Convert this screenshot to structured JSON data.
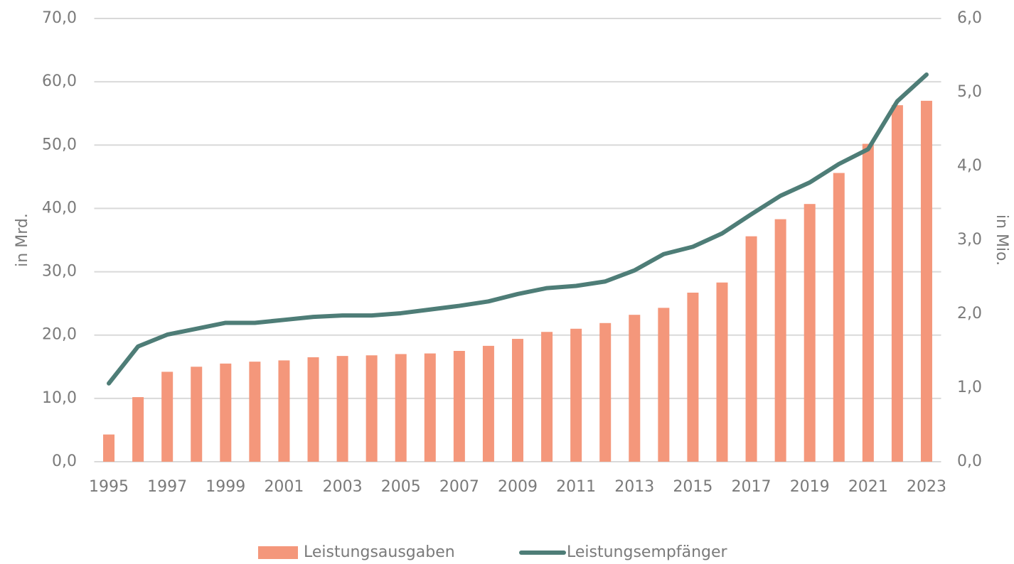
{
  "chart_data": {
    "type": "bar",
    "y_label": "in Mrd.",
    "y2_label": "in Mio.",
    "categories": [
      "1995",
      null,
      "1997",
      null,
      "1999",
      null,
      "2001",
      null,
      "2003",
      null,
      "2005",
      null,
      "2007",
      null,
      "2009",
      null,
      "2011",
      null,
      "2013",
      null,
      "2015",
      null,
      "2017",
      null,
      "2019",
      null,
      "2021",
      null,
      "2023"
    ],
    "series": [
      {
        "name": "Leistungsausgaben",
        "type": "bar",
        "color": "#f4977b",
        "values": [
          4.3,
          10.2,
          14.2,
          15.0,
          15.5,
          15.8,
          16.0,
          16.5,
          16.7,
          16.8,
          17.0,
          17.1,
          17.5,
          18.3,
          19.4,
          20.5,
          21.0,
          21.9,
          23.2,
          24.3,
          26.7,
          28.3,
          35.6,
          38.3,
          40.7,
          45.6,
          50.2,
          56.3,
          57.0
        ]
      },
      {
        "name": "Leistungsempfänger",
        "type": "line",
        "axis": "y2",
        "color": "#4e7d77",
        "values": [
          1.06,
          1.56,
          1.72,
          1.8,
          1.88,
          1.88,
          1.92,
          1.96,
          1.98,
          1.98,
          2.01,
          2.06,
          2.11,
          2.17,
          2.27,
          2.35,
          2.38,
          2.44,
          2.59,
          2.81,
          2.91,
          3.09,
          3.35,
          3.6,
          3.78,
          4.03,
          4.23,
          4.88,
          5.24
        ]
      }
    ],
    "ylim": [
      0,
      70
    ],
    "yticks": [
      {
        "value": 0,
        "label": "0,0"
      },
      {
        "value": 10,
        "label": "10,0"
      },
      {
        "value": 20,
        "label": "20,0"
      },
      {
        "value": 30,
        "label": "30,0"
      },
      {
        "value": 40,
        "label": "40,0"
      },
      {
        "value": 50,
        "label": "50,0"
      },
      {
        "value": 60,
        "label": "60,0"
      },
      {
        "value": 70,
        "label": "70,0"
      }
    ],
    "y2lim": [
      0,
      6
    ],
    "y2ticks": [
      {
        "value": 0,
        "label": "0,0"
      },
      {
        "value": 1,
        "label": "1,0"
      },
      {
        "value": 2,
        "label": "2,0"
      },
      {
        "value": 3,
        "label": "3,0"
      },
      {
        "value": 4,
        "label": "4,0"
      },
      {
        "value": 5,
        "label": "5,0"
      },
      {
        "value": 6,
        "label": "6,0"
      }
    ],
    "grid": true,
    "legend": "bottom"
  }
}
